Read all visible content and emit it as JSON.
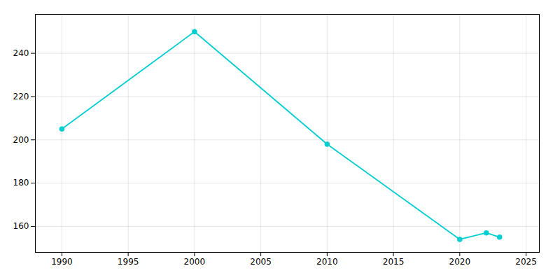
{
  "chart_data": {
    "type": "line",
    "x": [
      1990,
      2000,
      2010,
      2020,
      2022,
      2023
    ],
    "values": [
      205,
      250,
      198,
      154,
      157,
      155
    ],
    "color": "#00CED1",
    "marker": "circle",
    "xlim": [
      1988,
      2026
    ],
    "ylim": [
      148,
      258
    ],
    "xticks": [
      1990,
      1995,
      2000,
      2005,
      2010,
      2015,
      2020,
      2025
    ],
    "yticks": [
      160,
      180,
      200,
      220,
      240
    ],
    "grid": true
  }
}
